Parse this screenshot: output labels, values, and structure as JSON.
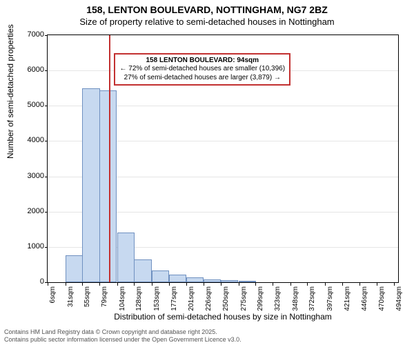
{
  "title": {
    "main": "158, LENTON BOULEVARD, NOTTINGHAM, NG7 2BZ",
    "sub": "Size of property relative to semi-detached houses in Nottingham",
    "main_fontsize": 14,
    "sub_fontsize": 13
  },
  "chart": {
    "type": "histogram",
    "background": "#ffffff",
    "border_color": "#000000",
    "grid_color": "#e5e5e5",
    "bar_fill": "#c7d9f0",
    "bar_stroke": "#6f90c0",
    "marker_color": "#c23030",
    "annotation_border": "#c23030",
    "y": {
      "label": "Number of semi-detached properties",
      "min": 0,
      "max": 7000,
      "ticks": [
        0,
        1000,
        2000,
        3000,
        4000,
        5000,
        6000,
        7000
      ]
    },
    "x": {
      "label": "Distribution of semi-detached houses by size in Nottingham",
      "min": 6,
      "max": 500,
      "tick_labels": [
        "6sqm",
        "31sqm",
        "55sqm",
        "79sqm",
        "104sqm",
        "128sqm",
        "153sqm",
        "177sqm",
        "201sqm",
        "226sqm",
        "250sqm",
        "275sqm",
        "299sqm",
        "323sqm",
        "348sqm",
        "372sqm",
        "397sqm",
        "421sqm",
        "446sqm",
        "470sqm",
        "494sqm"
      ],
      "tick_values": [
        6,
        31,
        55,
        79,
        104,
        128,
        153,
        177,
        201,
        226,
        250,
        275,
        299,
        323,
        348,
        372,
        397,
        421,
        446,
        470,
        494
      ]
    },
    "bars": {
      "bin_width_sqm": 24.5,
      "starts": [
        31,
        55,
        79,
        104,
        128,
        153,
        177,
        201,
        226,
        250,
        275
      ],
      "heights": [
        770,
        5490,
        5440,
        1400,
        640,
        330,
        210,
        130,
        80,
        55,
        30
      ]
    },
    "marker": {
      "x_value": 94,
      "annotation": {
        "line1": "158 LENTON BOULEVARD: 94sqm",
        "line2": "← 72% of semi-detached houses are smaller (10,396)",
        "line3": "27% of semi-detached houses are larger (3,879) →"
      }
    }
  },
  "footer": {
    "line1": "Contains HM Land Registry data © Crown copyright and database right 2025.",
    "line2": "Contains public sector information licensed under the Open Government Licence v3.0."
  }
}
